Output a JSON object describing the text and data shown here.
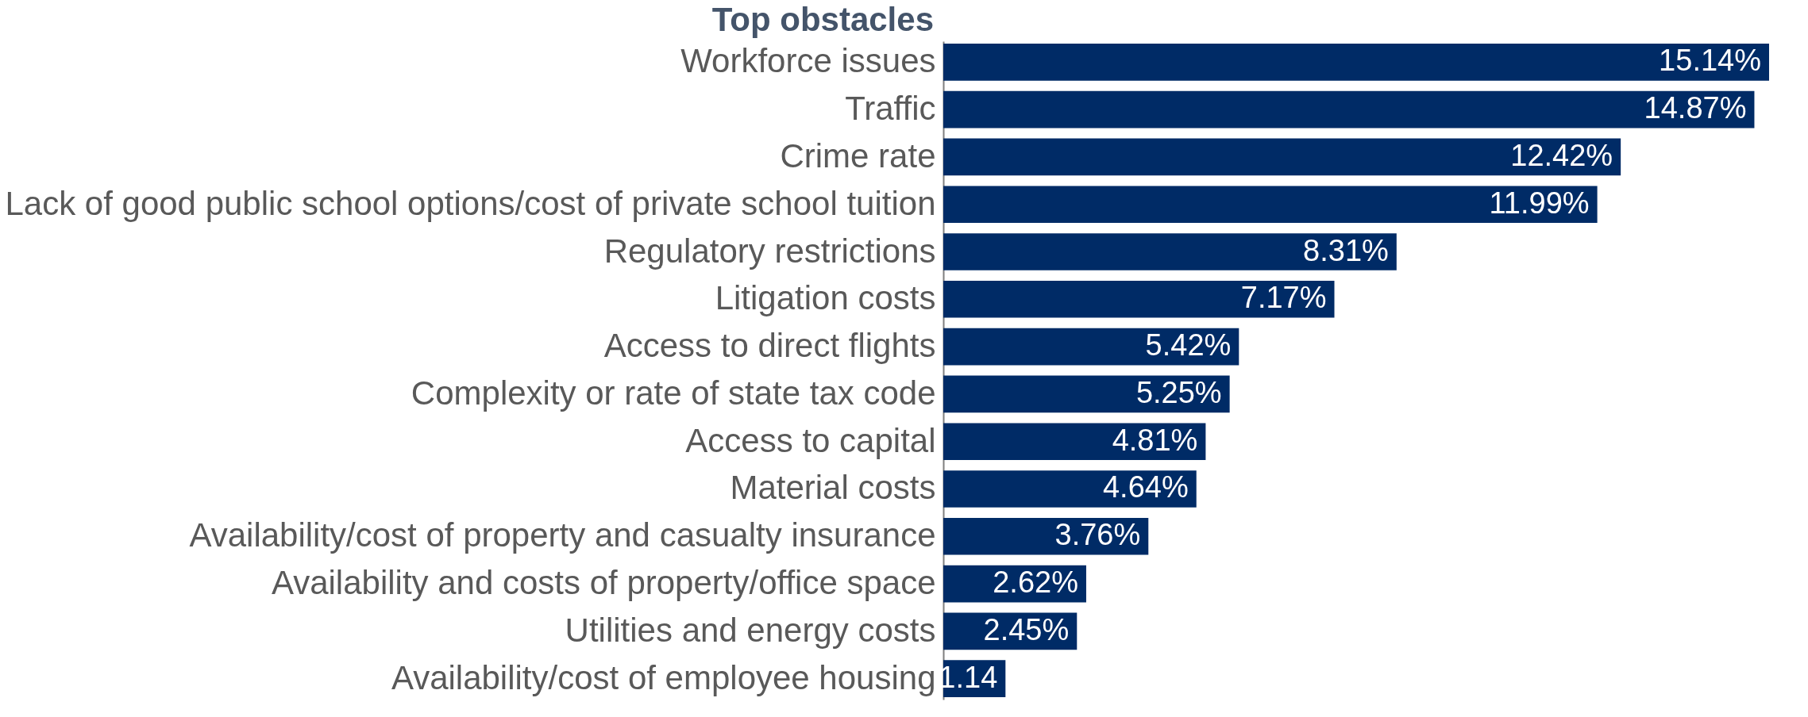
{
  "chart_data": {
    "type": "bar",
    "orientation": "horizontal",
    "title": "Top obstacles",
    "categories": [
      "Workforce issues",
      "Traffic",
      "Crime rate",
      "Lack of good public school options/cost of private school tuition",
      "Regulatory restrictions",
      "Litigation costs",
      "Access to direct flights",
      "Complexity or rate of state tax code",
      "Access to capital",
      "Material costs",
      "Availability/cost of property and casualty insurance",
      "Availability and costs of property/office space",
      "Utilities and energy costs",
      "Availability/cost of employee housing"
    ],
    "values": [
      15.14,
      14.87,
      12.42,
      11.99,
      8.31,
      7.17,
      5.42,
      5.25,
      4.81,
      4.64,
      3.76,
      2.62,
      2.45,
      1.14
    ],
    "value_labels": [
      "15.14%",
      "14.87%",
      "12.42%",
      "11.99%",
      "8.31%",
      "7.17%",
      "5.42%",
      "5.25%",
      "4.81%",
      "4.64%",
      "3.76%",
      "2.62%",
      "2.45%",
      "1.14"
    ],
    "color": "#002b66"
  }
}
